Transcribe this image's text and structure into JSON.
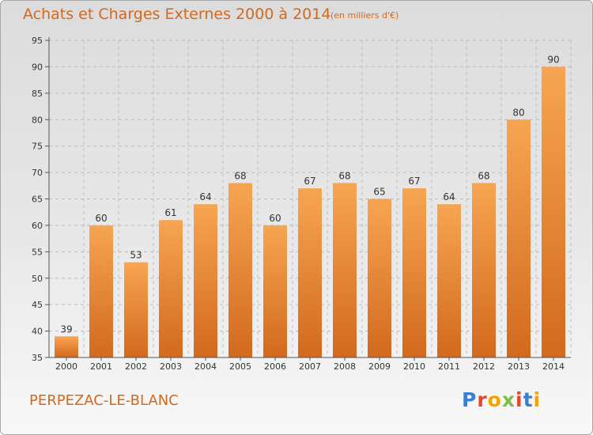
{
  "header": {
    "title": "Achats et Charges Externes 2000 à 2014",
    "subtitle": "(en milliers d'€)"
  },
  "footer": {
    "commune": "PERPEZAC-LE-BLANC",
    "logo_text": "Proxiti",
    "logo_letter_colors": [
      "#3a7fd5",
      "#e8452c",
      "#f4a300",
      "#7ac143",
      "#e8452c",
      "#3a7fd5",
      "#f4a300"
    ]
  },
  "colors": {
    "bar_top": "#f7a552",
    "bar_bottom": "#d2691e",
    "accent_text": "#d2691e",
    "grid": "#bdbdbd"
  },
  "chart_data": {
    "type": "bar",
    "title": "Achats et Charges Externes 2000 à 2014",
    "subtitle": "(en milliers d'€)",
    "categories": [
      "2000",
      "2001",
      "2002",
      "2003",
      "2004",
      "2005",
      "2006",
      "2007",
      "2008",
      "2009",
      "2010",
      "2011",
      "2012",
      "2013",
      "2014"
    ],
    "values": [
      39,
      60,
      53,
      61,
      64,
      68,
      60,
      67,
      68,
      65,
      67,
      64,
      68,
      80,
      90
    ],
    "xlabel": "",
    "ylabel": "",
    "ylim": [
      35,
      95
    ],
    "yticks": [
      35,
      40,
      45,
      50,
      55,
      60,
      65,
      70,
      75,
      80,
      85,
      90,
      95
    ],
    "grid": true,
    "legend": "none"
  }
}
